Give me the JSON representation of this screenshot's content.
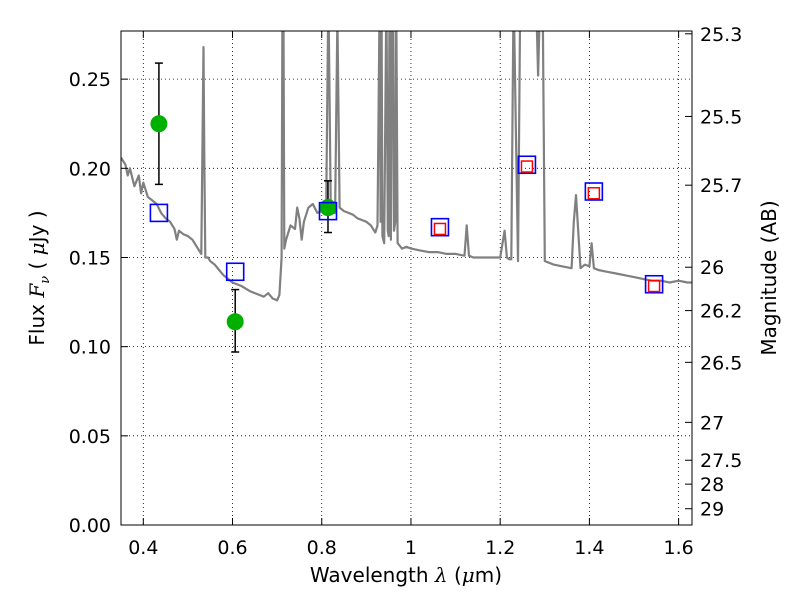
{
  "chart_data": {
    "type": "scatter",
    "title": "",
    "xlabel": "Wavelength  λ (μm)",
    "ylabel": "Flux  Fν  ( μJy )",
    "y2label": "Magnitude (AB)",
    "xlim": [
      0.35,
      1.63
    ],
    "ylim": [
      0.0,
      0.277
    ],
    "grid": true,
    "legend": "none",
    "x_ticks": [
      0.4,
      0.6,
      0.8,
      1.0,
      1.2,
      1.4,
      1.6
    ],
    "x_tick_labels": [
      "0.4",
      "0.6",
      "0.8",
      "1",
      "1.2",
      "1.4",
      "1.6"
    ],
    "y_ticks": [
      0.0,
      0.05,
      0.1,
      0.15,
      0.2,
      0.25
    ],
    "y_tick_labels": [
      "0.00",
      "0.05",
      "0.10",
      "0.15",
      "0.20",
      "0.25"
    ],
    "mag_ticks": [
      25.3,
      25.5,
      25.7,
      26,
      26.2,
      26.5,
      27,
      27.5,
      28,
      29
    ],
    "mag_tick_labels": [
      "25.3",
      "25.5",
      "25.7",
      "26",
      "26.2",
      "26.5",
      "27",
      "27.5",
      "28",
      "29"
    ],
    "series": [
      {
        "kind": "line",
        "color": "#808080",
        "x": [
          0.35,
          0.36,
          0.365,
          0.37,
          0.38,
          0.39,
          0.395,
          0.4,
          0.41,
          0.42,
          0.43,
          0.44,
          0.45,
          0.46,
          0.47,
          0.475,
          0.48,
          0.49,
          0.5,
          0.51,
          0.52,
          0.53,
          0.535,
          0.537,
          0.539,
          0.545,
          0.55,
          0.56,
          0.57,
          0.58,
          0.59,
          0.6,
          0.62,
          0.64,
          0.66,
          0.67,
          0.68,
          0.69,
          0.7,
          0.705,
          0.71,
          0.712,
          0.714,
          0.716,
          0.72,
          0.73,
          0.74,
          0.745,
          0.75,
          0.755,
          0.76,
          0.77,
          0.78,
          0.79,
          0.8,
          0.81,
          0.815,
          0.82,
          0.825,
          0.83,
          0.835,
          0.84,
          0.85,
          0.86,
          0.87,
          0.88,
          0.89,
          0.9,
          0.91,
          0.92,
          0.925,
          0.93,
          0.932,
          0.934,
          0.936,
          0.94,
          0.945,
          0.948,
          0.95,
          0.952,
          0.955,
          0.958,
          0.96,
          0.962,
          0.965,
          0.967,
          0.97,
          0.98,
          0.99,
          1.0,
          1.02,
          1.04,
          1.06,
          1.08,
          1.1,
          1.12,
          1.125,
          1.13,
          1.14,
          1.16,
          1.18,
          1.2,
          1.21,
          1.215,
          1.22,
          1.225,
          1.23,
          1.24,
          1.245,
          1.25,
          1.26,
          1.27,
          1.28,
          1.285,
          1.29,
          1.295,
          1.3,
          1.31,
          1.32,
          1.34,
          1.36,
          1.365,
          1.37,
          1.375,
          1.38,
          1.39,
          1.4,
          1.405,
          1.41,
          1.42,
          1.44,
          1.46,
          1.48,
          1.5,
          1.52,
          1.54,
          1.56,
          1.58,
          1.6,
          1.62,
          1.63
        ],
        "y": [
          0.206,
          0.202,
          0.196,
          0.2,
          0.19,
          0.196,
          0.186,
          0.192,
          0.184,
          0.182,
          0.18,
          0.175,
          0.172,
          0.17,
          0.166,
          0.16,
          0.165,
          0.163,
          0.162,
          0.16,
          0.156,
          0.152,
          0.268,
          0.2,
          0.15,
          0.15,
          0.148,
          0.146,
          0.143,
          0.14,
          0.138,
          0.136,
          0.134,
          0.131,
          0.129,
          0.128,
          0.13,
          0.127,
          0.126,
          0.129,
          0.15,
          0.3,
          0.3,
          0.155,
          0.16,
          0.168,
          0.166,
          0.178,
          0.172,
          0.16,
          0.17,
          0.178,
          0.18,
          0.175,
          0.176,
          0.179,
          0.3,
          0.18,
          0.175,
          0.175,
          0.285,
          0.178,
          0.176,
          0.175,
          0.174,
          0.172,
          0.171,
          0.17,
          0.168,
          0.164,
          0.168,
          0.3,
          0.17,
          0.3,
          0.162,
          0.158,
          0.3,
          0.165,
          0.162,
          0.3,
          0.16,
          0.3,
          0.3,
          0.165,
          0.17,
          0.3,
          0.158,
          0.155,
          0.156,
          0.155,
          0.154,
          0.153,
          0.153,
          0.152,
          0.152,
          0.151,
          0.168,
          0.151,
          0.15,
          0.15,
          0.15,
          0.15,
          0.165,
          0.15,
          0.149,
          0.149,
          0.3,
          0.148,
          0.3,
          0.3,
          0.3,
          0.3,
          0.3,
          0.252,
          0.3,
          0.3,
          0.148,
          0.147,
          0.146,
          0.145,
          0.144,
          0.17,
          0.185,
          0.165,
          0.144,
          0.146,
          0.145,
          0.158,
          0.144,
          0.143,
          0.142,
          0.141,
          0.14,
          0.139,
          0.138,
          0.137,
          0.137,
          0.136,
          0.137,
          0.136,
          0.136
        ]
      },
      {
        "kind": "points",
        "marker": "circle",
        "color": "#00b000",
        "x": [
          0.435,
          0.606,
          0.814
        ],
        "y": [
          0.225,
          0.114,
          0.178
        ],
        "yerr_low": [
          0.191,
          0.097,
          0.164
        ],
        "yerr_high": [
          0.259,
          0.132,
          0.193
        ]
      },
      {
        "kind": "points",
        "marker": "square-open",
        "color": "#0000ff",
        "x": [
          0.435,
          0.606,
          0.814,
          1.065,
          1.26,
          1.41,
          1.545
        ],
        "y": [
          0.175,
          0.142,
          0.176,
          0.167,
          0.202,
          0.187,
          0.135
        ]
      },
      {
        "kind": "points",
        "marker": "square-open-small",
        "color": "#ff0000",
        "x": [
          1.065,
          1.26,
          1.41,
          1.545
        ],
        "y": [
          0.166,
          0.201,
          0.186,
          0.134
        ]
      }
    ]
  }
}
